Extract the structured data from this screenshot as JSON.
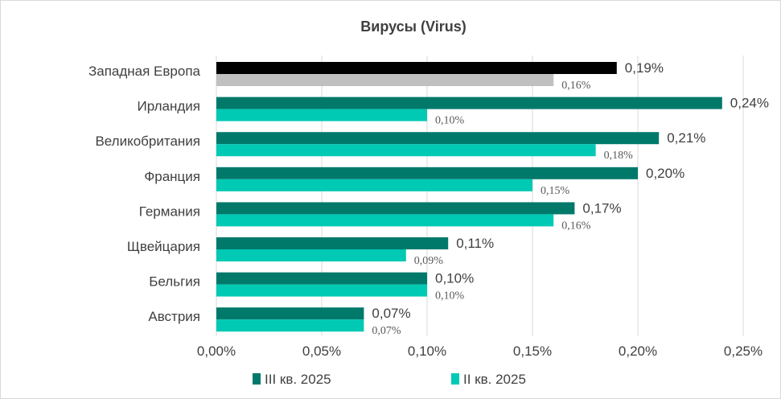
{
  "chart_data": {
    "type": "bar",
    "orientation": "horizontal",
    "title": "Вирусы (Virus)",
    "categories": [
      "Западная Европа",
      "Ирландия",
      "Великобритания",
      "Франция",
      "Германия",
      "Щвейцария",
      "Бельгия",
      "Австрия"
    ],
    "series": [
      {
        "name": "III кв. 2025",
        "color": "#00796b",
        "highlight_color": "#000000",
        "values": [
          0.19,
          0.24,
          0.21,
          0.2,
          0.17,
          0.11,
          0.1,
          0.07
        ],
        "labels": [
          "0,19%",
          "0,24%",
          "0,21%",
          "0,20%",
          "0,17%",
          "0,11%",
          "0,10%",
          "0,07%"
        ]
      },
      {
        "name": "II кв. 2025",
        "color": "#00c9b4",
        "highlight_color": "#c0c0c0",
        "values": [
          0.16,
          0.1,
          0.18,
          0.15,
          0.16,
          0.09,
          0.1,
          0.07
        ],
        "labels": [
          "0,16%",
          "0,10%",
          "0,18%",
          "0,15%",
          "0,16%",
          "0,09%",
          "0,10%",
          "0,07%"
        ]
      }
    ],
    "xlim": [
      0,
      0.25
    ],
    "x_ticks": [
      0,
      0.05,
      0.1,
      0.15,
      0.2,
      0.25
    ],
    "x_tick_labels": [
      "0,00%",
      "0,05%",
      "0,10%",
      "0,15%",
      "0,20%",
      "0,25%"
    ],
    "grid": "vertical",
    "legend": "bottom",
    "xlabel": "",
    "ylabel": ""
  }
}
